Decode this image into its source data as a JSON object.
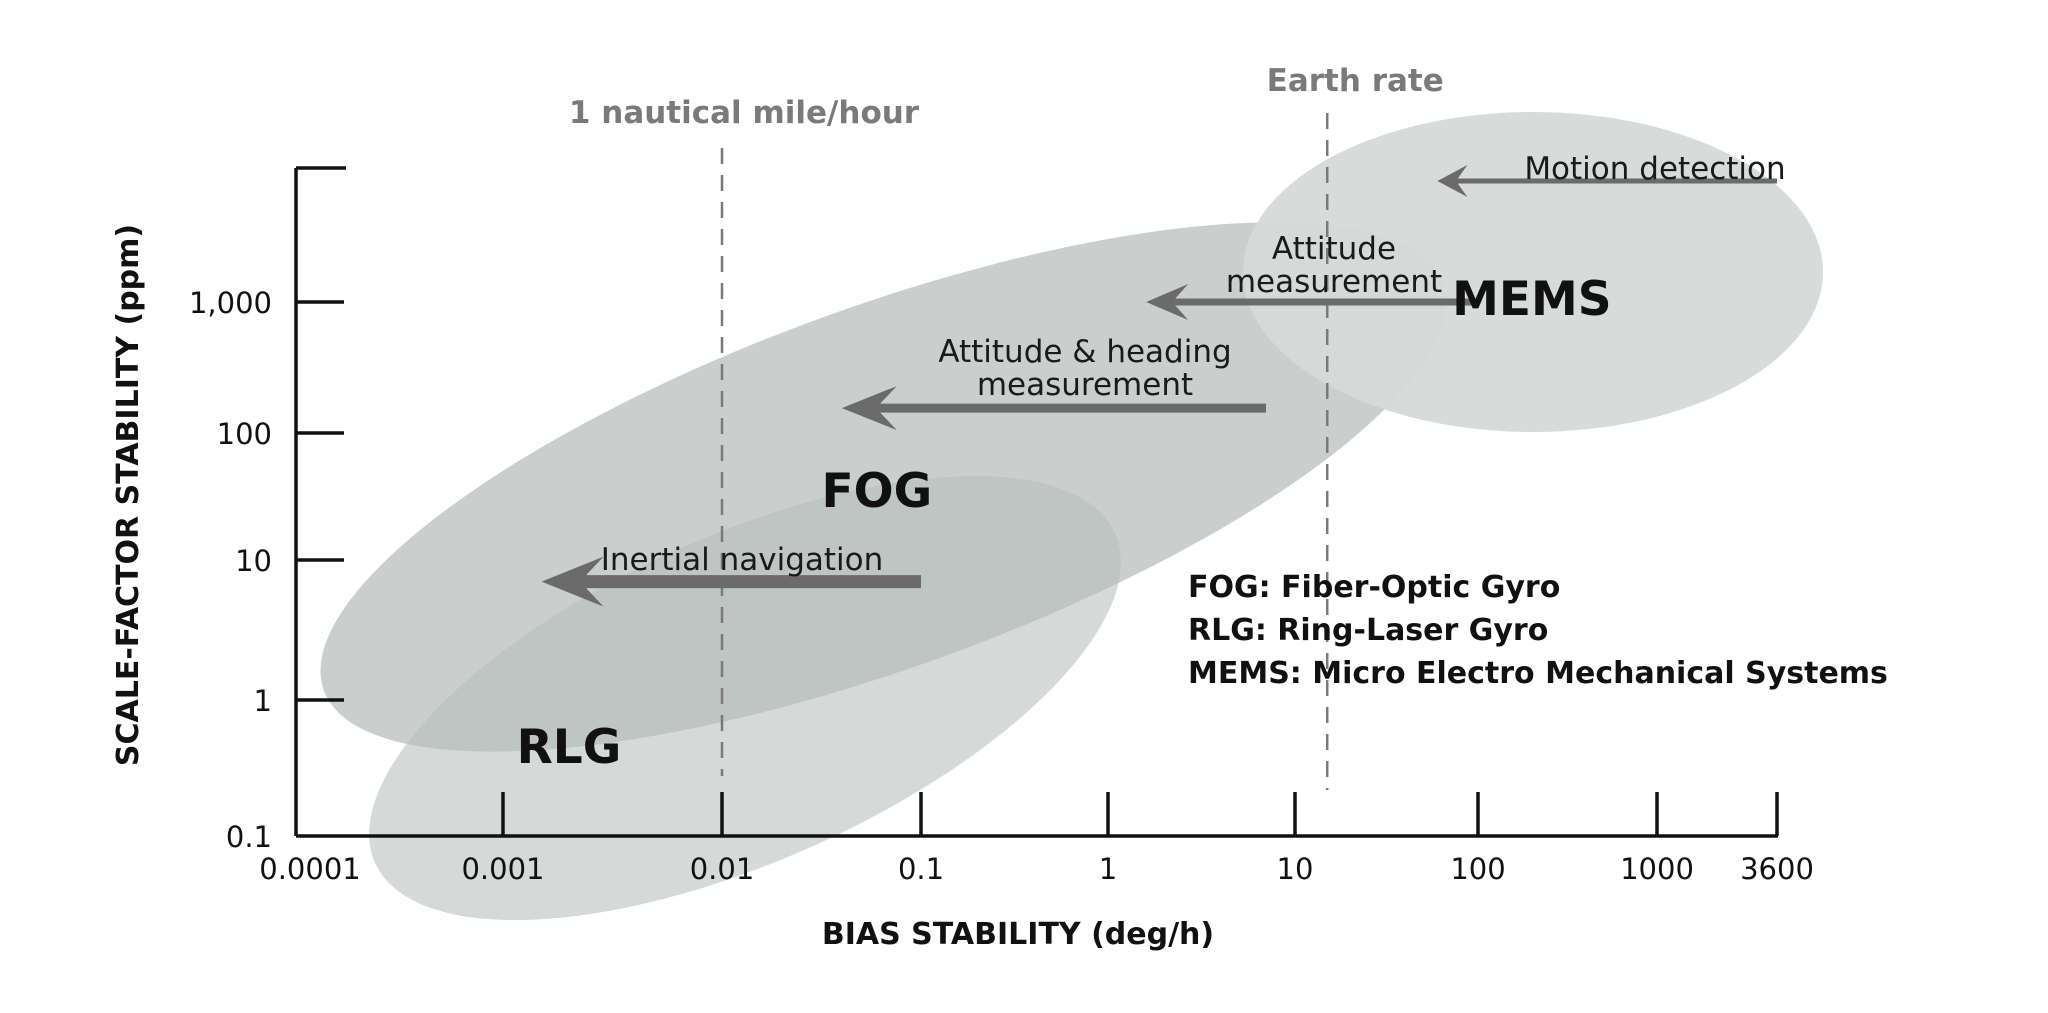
{
  "chart_data": {
    "type": "scatter",
    "title": "",
    "xlabel": "BIAS STABILITY (deg/h)",
    "ylabel": "SCALE-FACTOR STABILITY (ppm)",
    "x_scale": "log",
    "y_scale": "log",
    "xlim": [
      0.0001,
      3600
    ],
    "ylim": [
      0.1,
      10000
    ],
    "x_ticks": [
      0.0001,
      0.001,
      0.01,
      0.1,
      1,
      10,
      100,
      1000,
      3600
    ],
    "x_tick_labels": [
      "0.0001",
      "0.001",
      "0.01",
      "0.1",
      "1",
      "10",
      "100",
      "1000",
      "3600"
    ],
    "y_ticks": [
      0.1,
      1,
      10,
      100,
      1000
    ],
    "y_tick_labels": [
      "0.1",
      "1",
      "10",
      "100",
      "1,000"
    ],
    "grid": false,
    "reference_lines": [
      {
        "label": "1 nautical mile/hour",
        "x": 0.01,
        "style": "dashed"
      },
      {
        "label": "Earth rate",
        "x": 15,
        "style": "dashed"
      }
    ],
    "regions": [
      {
        "name": "RLG",
        "label": "RLG",
        "label_at": [
          0.002,
          0.45
        ],
        "color": "#d5d9d8"
      },
      {
        "name": "FOG",
        "label": "FOG",
        "label_at": [
          0.06,
          35
        ],
        "color": "#b6bcba"
      },
      {
        "name": "MEMS",
        "label": "MEMS",
        "label_at": [
          200,
          1050
        ],
        "color": "#d5d9d8"
      }
    ],
    "annotations": [
      {
        "lines": [
          "Motion detection"
        ],
        "arrow_from": [
          3600,
          8000
        ],
        "arrow_to": [
          60,
          8000
        ]
      },
      {
        "lines": [
          "Attitude",
          "measurement"
        ],
        "arrow_from": [
          100,
          1000
        ],
        "arrow_to": [
          1.6,
          1000
        ]
      },
      {
        "lines": [
          "Attitude & heading",
          "measurement"
        ],
        "arrow_from": [
          7,
          155
        ],
        "arrow_to": [
          0.04,
          155
        ]
      },
      {
        "lines": [
          "Inertial navigation"
        ],
        "arrow_from": [
          0.1,
          7
        ],
        "arrow_to": [
          0.0015,
          7
        ]
      }
    ],
    "legend_lines": [
      "FOG: Fiber-Optic Gyro",
      "RLG: Ring-Laser Gyro",
      "MEMS: Micro Electro Mechanical Systems"
    ],
    "colors": {
      "axis": "#111111",
      "arrow": "#6b6b6b",
      "ref_line": "#7a7a7a",
      "region_light": "#d5d9d8",
      "region_dark": "#b6bcba"
    }
  }
}
